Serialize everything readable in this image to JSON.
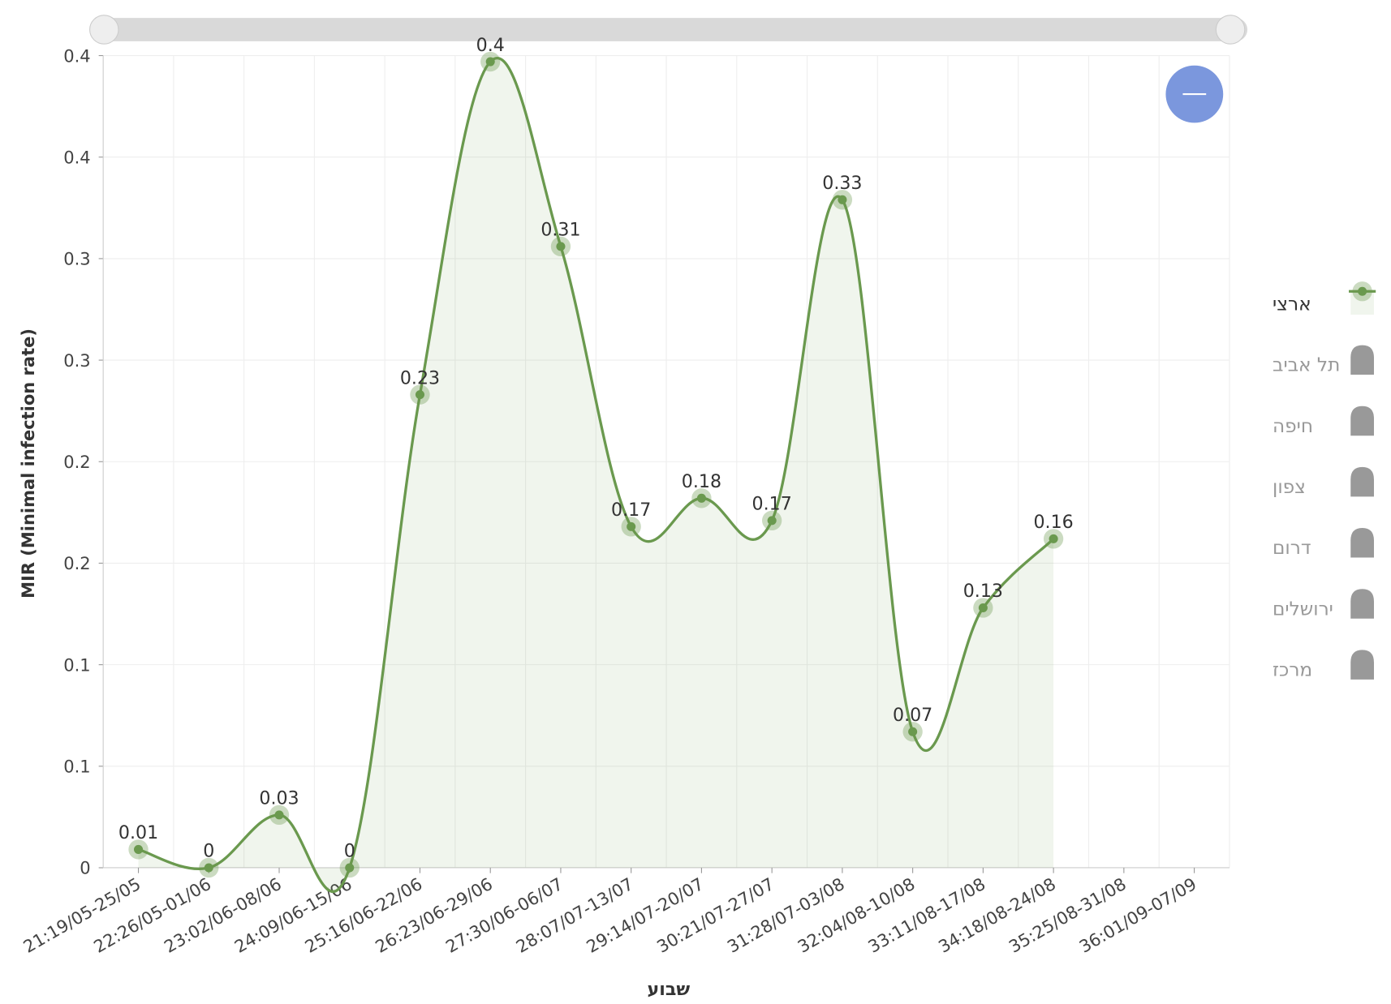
{
  "chart_data": {
    "type": "line",
    "smooth": true,
    "area": true,
    "x_label": "שבוע",
    "y_label": "MIR (Minimal infection rate)",
    "categories": [
      "21:19/05-25/05",
      "22:26/05-01/06",
      "23:02/06-08/06",
      "24:09/06-15/06",
      "25:16/06-22/06",
      "26:23/06-29/06",
      "27:30/06-06/07",
      "28:07/07-13/07",
      "29:14/07-20/07",
      "30:21/07-27/07",
      "31:28/07-03/08",
      "32:04/08-10/08",
      "33:11/08-17/08",
      "34:18/08-24/08",
      "35:25/08-31/08",
      "36:01/09-07/09"
    ],
    "series": [
      {
        "name": "ארצי",
        "color": "#6a994e",
        "values": [
          0.009,
          0,
          0.026,
          0,
          0.233,
          0.397,
          0.306,
          0.168,
          0.182,
          0.171,
          0.329,
          0.067,
          0.128,
          0.162,
          null,
          null
        ],
        "value_labels": [
          "0.01",
          "0",
          "0.03",
          "0",
          "0.23",
          "0.4",
          "0.31",
          "0.17",
          "0.18",
          "0.17",
          "0.33",
          "0.07",
          "0.13",
          "0.16",
          null,
          null
        ]
      }
    ],
    "hidden_series": [
      "תל אביב",
      "חיפה",
      "צפון",
      "דרום",
      "ירושלים",
      "מרכז"
    ],
    "ylim": [
      0,
      0.4
    ],
    "yticks": [
      0,
      {
        "value": 0.05,
        "label": "0.1"
      },
      0.1,
      {
        "value": 0.15,
        "label": "0.2"
      },
      0.2,
      {
        "value": 0.25,
        "label": "0.3"
      },
      0.3,
      {
        "value": 0.35,
        "label": "0.4"
      },
      0.4
    ],
    "grid": true,
    "legend": "right"
  }
}
